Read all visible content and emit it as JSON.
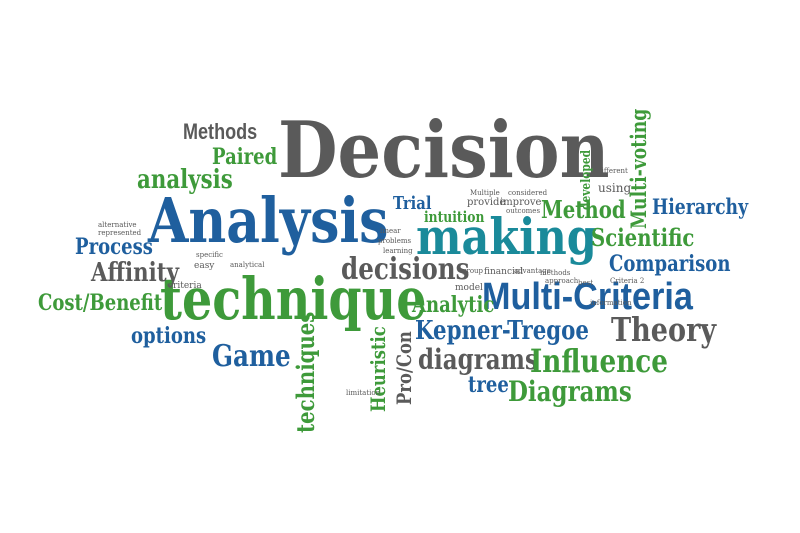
{
  "palette": {
    "green": "#3e9a3a",
    "blue": "#1f5f9e",
    "teal": "#1a8a9a",
    "gray": "#5a5a5a",
    "dark": "#444444"
  },
  "words": {
    "decision": "Decision",
    "analysis_big": "Analysis",
    "technique": "technique",
    "making": "making",
    "multi_criteria": "Multi-Criteria",
    "methods": "Methods",
    "paired": "Paired",
    "analysis_small": "analysis",
    "process": "Process",
    "affinity": "Affinity",
    "cost_benefit": "Cost/Benefit",
    "options": "options",
    "game": "Game",
    "techniques": "techniques",
    "heuristic": "Heuristic",
    "pro_con": "Pro/Con",
    "decisions": "decisions",
    "trial": "Trial",
    "intuition": "intuition",
    "method": "Method",
    "scientific": "Scientific",
    "hierarchy": "Hierarchy",
    "multi_voting": "Multi-voting",
    "comparison": "Comparison",
    "analytic": "Analytic",
    "kepner_tregoe": "Kepner-Tregoe",
    "theory": "Theory",
    "diagrams_small": "diagrams",
    "influence": "Influence",
    "tree": "tree",
    "diagrams_big": "Diagrams",
    "criteria": "criteria",
    "using": "using",
    "developed": "developed",
    "provide": "provide",
    "improve": "improve",
    "model": "model",
    "financial": "financial",
    "advantage": "advantage",
    "easy": "easy",
    "analytical": "analytical",
    "specific": "specific",
    "multiple": "Multiple",
    "considered": "considered",
    "different": "Different",
    "linear": "linear",
    "problems": "problems",
    "approach": "approach",
    "learning": "learning",
    "alternative": "alternative",
    "represented": "represented",
    "group": "group",
    "methods_small": "methods",
    "information": "information",
    "best": "best",
    "outcomes": "outcomes",
    "limitation": "limitation",
    "criteria_2": "Criteria 2"
  }
}
